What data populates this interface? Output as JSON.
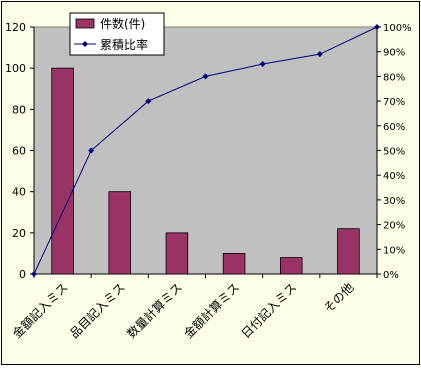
{
  "chart_data": {
    "type": "bar",
    "categories": [
      "金額記入ミス",
      "品目記入ミス",
      "数量計算ミス",
      "金額計算ミス",
      "日付記入ミス",
      "その他"
    ],
    "series": [
      {
        "name": "件数(件)",
        "type": "bar",
        "axis": "left",
        "values": [
          100,
          40,
          20,
          10,
          8,
          22
        ]
      },
      {
        "name": "累積比率",
        "type": "line",
        "axis": "right",
        "x": [
          0,
          1,
          2,
          3,
          4,
          5,
          6
        ],
        "values": [
          0,
          50,
          70,
          80,
          85,
          89,
          100
        ]
      }
    ],
    "y_left": {
      "min": 0,
      "max": 120,
      "ticks": [
        "0",
        "20",
        "40",
        "60",
        "80",
        "100",
        "120"
      ]
    },
    "y_right": {
      "min": 0,
      "max": 100,
      "ticks": [
        "0%",
        "10%",
        "20%",
        "30%",
        "40%",
        "50%",
        "60%",
        "70%",
        "80%",
        "90%",
        "100%"
      ]
    },
    "grid": false,
    "legend": "top-left",
    "title": "",
    "xlabel": "",
    "ylabel": ""
  },
  "colors": {
    "page": "#fffee8",
    "plot": "#c0c0c0",
    "bar": "#993366",
    "line": "#000080"
  }
}
